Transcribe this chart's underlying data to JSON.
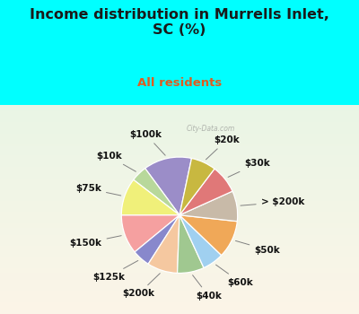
{
  "title": "Income distribution in Murrells Inlet,\nSC (%)",
  "subtitle": "All residents",
  "title_color": "#1a1a1a",
  "subtitle_color": "#e05c20",
  "background_cyan": "#00ffff",
  "labels": [
    "$100k",
    "$10k",
    "$75k",
    "$150k",
    "$125k",
    "$200k",
    "$40k",
    "$60k",
    "$50k",
    "> $200k",
    "$30k",
    "$20k"
  ],
  "values": [
    13.5,
    4.5,
    10.5,
    11.0,
    5.0,
    8.5,
    7.5,
    6.0,
    10.5,
    8.5,
    8.0,
    7.0
  ],
  "colors": [
    "#9b8dc8",
    "#b8d89b",
    "#f0f07a",
    "#f5a0a0",
    "#8888cc",
    "#f5c8a0",
    "#a0c890",
    "#a0d0f0",
    "#f0a858",
    "#c8baa8",
    "#e07878",
    "#c8b840"
  ],
  "wedge_edge_color": "white",
  "label_fontsize": 7.5,
  "label_color": "#111111",
  "startangle": 78,
  "title_fontsize": 11.5,
  "subtitle_fontsize": 9.5
}
